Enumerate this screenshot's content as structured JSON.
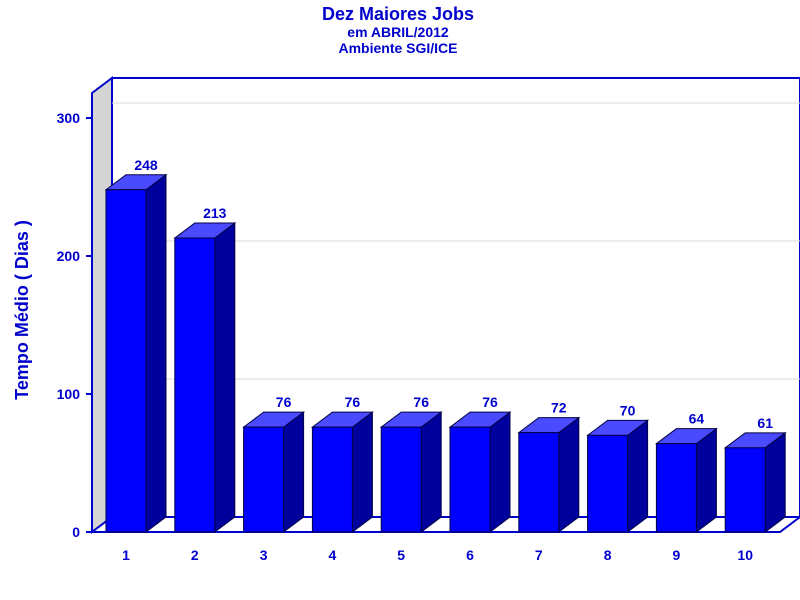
{
  "chart_data": {
    "type": "bar",
    "title": "Dez Maiores Jobs",
    "subtitle": [
      "em ABRIL/2012",
      "Ambiente SGI/ICE"
    ],
    "xlabel": "",
    "ylabel": "Tempo Médio ( Dias )",
    "categories": [
      "1",
      "2",
      "3",
      "4",
      "5",
      "6",
      "7",
      "8",
      "9",
      "10"
    ],
    "values": [
      248,
      213,
      76,
      76,
      76,
      76,
      72,
      70,
      64,
      61
    ],
    "ylim": [
      0,
      300
    ],
    "yticks": [
      "0",
      "100",
      "200",
      "300"
    ],
    "grid": true,
    "legend": "none",
    "style": "3d",
    "colors": {
      "bar_front": "#0000ff",
      "bar_top": "#4a4aff",
      "bar_side": "#00009c",
      "axis": "#0000cc",
      "back_wall": "#ffffff",
      "left_wall": "#d4d4d4",
      "grid": "#d8d8d8"
    }
  }
}
